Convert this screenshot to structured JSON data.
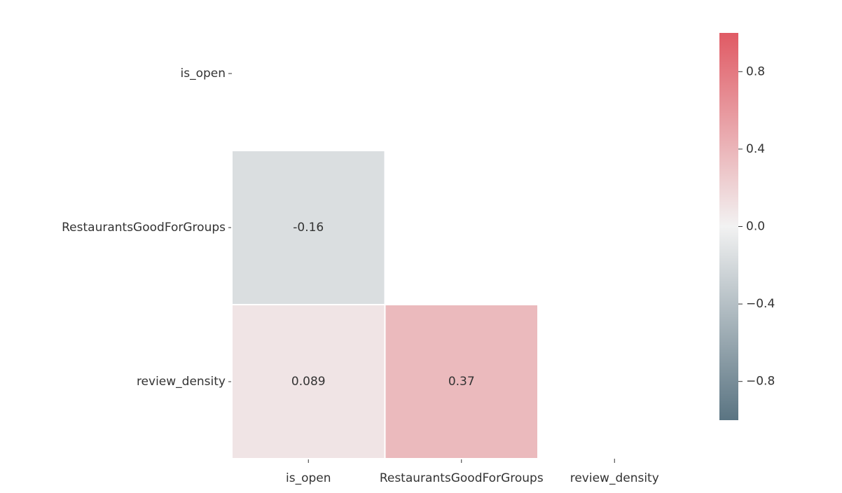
{
  "chart_data": {
    "type": "heatmap",
    "x_categories": [
      "is_open",
      "RestaurantsGoodForGroups",
      "review_density"
    ],
    "y_categories": [
      "is_open",
      "RestaurantsGoodForGroups",
      "review_density"
    ],
    "values": [
      [
        null,
        null,
        null
      ],
      [
        -0.16,
        null,
        null
      ],
      [
        0.089,
        0.37,
        null
      ]
    ],
    "cmap": [
      "#5a7482",
      "#f2f2f2",
      "#e05a64"
    ],
    "clim": [
      -1,
      1
    ],
    "cticks": [
      {
        "value": -0.8,
        "label": "−0.8"
      },
      {
        "value": -0.4,
        "label": "−0.4"
      },
      {
        "value": 0,
        "label": "0.0"
      },
      0.4,
      0.8
    ]
  }
}
